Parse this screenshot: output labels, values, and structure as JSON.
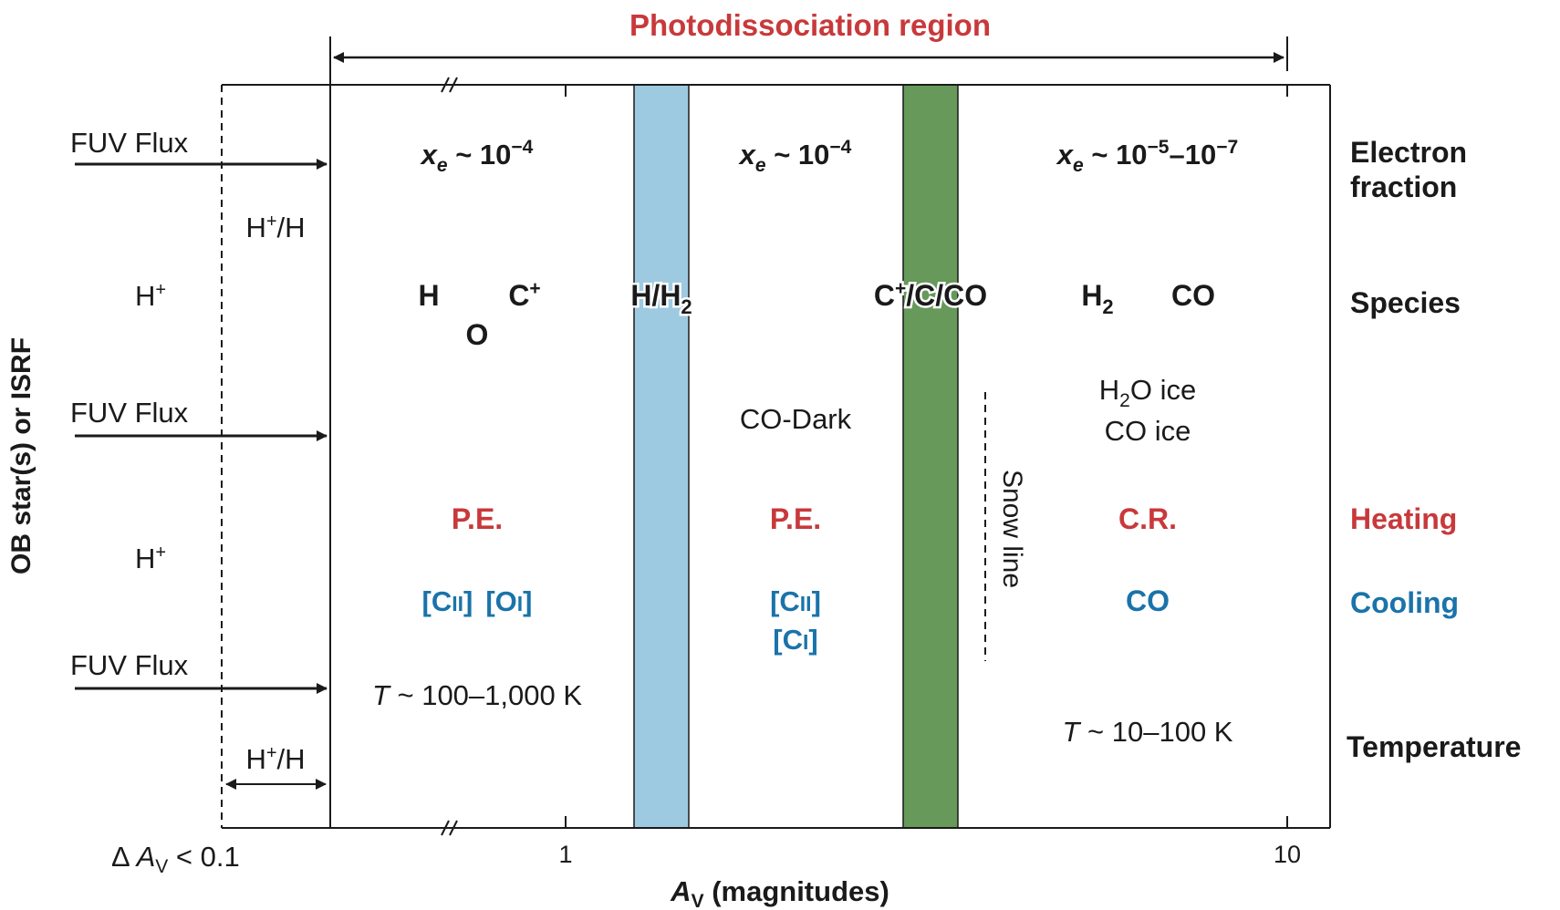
{
  "colors": {
    "accent_red": "#c8393b",
    "accent_blue": "#1a73aa",
    "band_h": "#9ecae1",
    "band_co": "#66995a",
    "ink": "#1a1a1a"
  },
  "header": {
    "title": "Photodissociation region"
  },
  "left": {
    "vertical_label": "OB star(s) or ISRF",
    "fuv_labels": [
      "FUV Flux",
      "FUV Flux",
      "FUV Flux"
    ],
    "hplus_h_top": "H",
    "hplus_h_top_sup": "+",
    "hplus_h_top_tail": "/H",
    "hplus_1": "H",
    "hplus_1_sup": "+",
    "hplus_2": "H",
    "hplus_2_sup": "+",
    "hplus_h_bottom": "H",
    "hplus_h_bottom_sup": "+",
    "hplus_h_bottom_tail": "/H",
    "delta_prefix": "Δ ",
    "delta_A": "A",
    "delta_sub": "V",
    "delta_suffix": " < 0.1"
  },
  "axis": {
    "tick_1": "1",
    "tick_10": "10",
    "xlabel_A": "A",
    "xlabel_sub": "V",
    "xlabel_rest": " (magnitudes)"
  },
  "zone1": {
    "xe_x": "x",
    "xe_sub": "e",
    "xe_rest": " ~ 10",
    "xe_exp": "−4",
    "species_h": "H",
    "species_o": "O",
    "species_c": "C",
    "species_c_sup": "+",
    "heating": "P.E.",
    "cooling_cii": "[C",
    "cooling_cii_ion": "II",
    "cooling_cii_end": "]",
    "cooling_oi": "[O",
    "cooling_oi_ion": "I",
    "cooling_oi_end": "]",
    "temp_T": "T",
    "temp_rest": " ~ 100–1,000 K"
  },
  "band_h": {
    "label": "H/H",
    "label_sub": "2"
  },
  "zone2": {
    "xe_x": "x",
    "xe_sub": "e",
    "xe_rest": " ~ 10",
    "xe_exp": "−4",
    "co_dark": "CO-Dark",
    "heating": "P.E.",
    "cooling_cii": "[C",
    "cooling_cii_ion": "II",
    "cooling_cii_end": "]",
    "cooling_ci": "[C",
    "cooling_ci_ion": "I",
    "cooling_ci_end": "]"
  },
  "band_co": {
    "label_c": "C",
    "label_sup": "+",
    "label_rest": "/C/CO"
  },
  "zone3": {
    "xe_x": "x",
    "xe_sub": "e",
    "xe_rest": " ~ 10",
    "xe_exp1": "−5",
    "xe_dash": "–10",
    "xe_exp2": "−7",
    "species_h2": "H",
    "species_h2_sub": "2",
    "species_co": "CO",
    "ice_h2o_a": "H",
    "ice_h2o_sub": "2",
    "ice_h2o_b": "O ice",
    "ice_co": "CO ice",
    "snow_line": "Snow line",
    "heating": "C.R.",
    "cooling": "CO",
    "temp_T": "T",
    "temp_rest": " ~ 10–100 K"
  },
  "right": {
    "electron_1": "Electron",
    "electron_2": "fraction",
    "species": "Species",
    "heating": "Heating",
    "cooling": "Cooling",
    "temperature": "Temperature"
  }
}
